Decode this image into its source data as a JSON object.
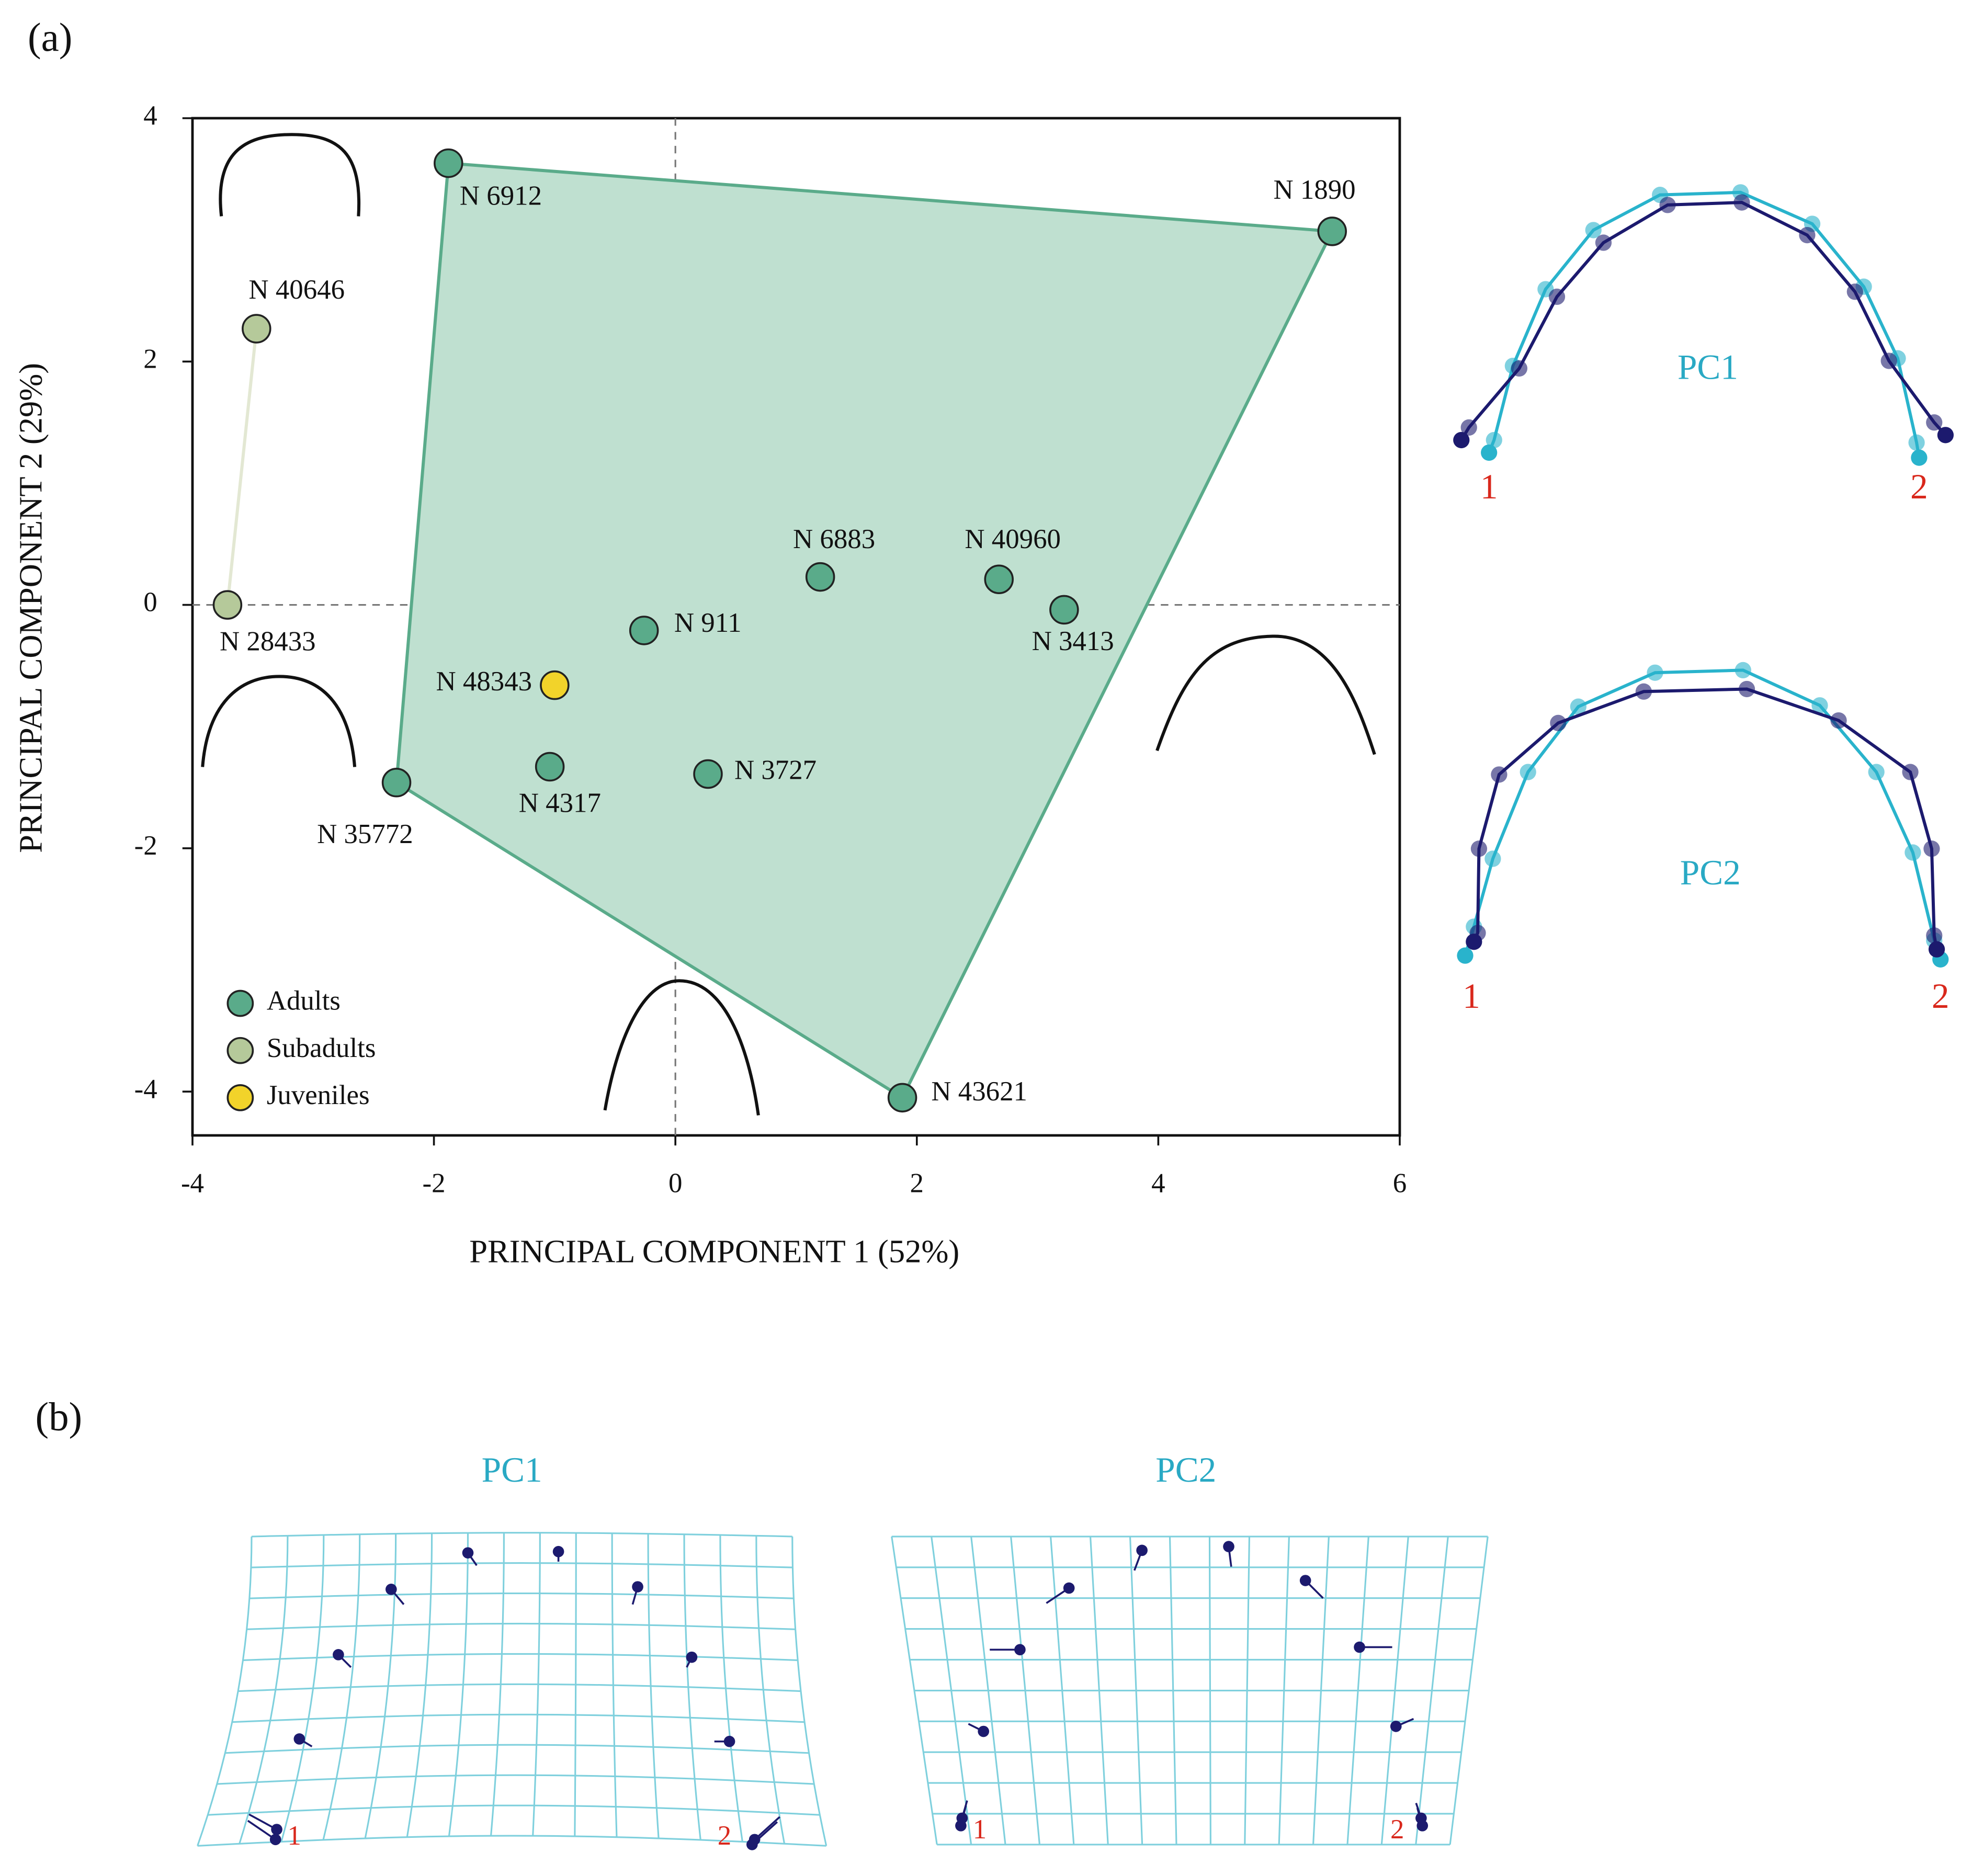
{
  "chart_data": {
    "type": "scatter",
    "x_label": "PRINCIPAL COMPONENT 1 (52%)",
    "y_label": "PRINCIPAL COMPONENT 2 (29%)",
    "xlim": [
      -4,
      6
    ],
    "ylim": [
      -4.36,
      4
    ],
    "xticks": [
      -4,
      -2,
      0,
      2,
      4,
      6
    ],
    "yticks": [
      -4,
      -2,
      0,
      2,
      4
    ],
    "zero_lines": true,
    "legend": "lower left",
    "series": [
      {
        "name": "Adults",
        "color": "#5aab8a",
        "hull": true,
        "hull_fill": "#bfe0d0",
        "labels": [
          "N 6912",
          "N 1890",
          "N 6883",
          "N 40960",
          "N 3413",
          "N 911",
          "N 4317",
          "N 3727",
          "N 35772",
          "N 43621"
        ],
        "x": [
          -1.88,
          5.44,
          1.2,
          2.68,
          3.22,
          -0.26,
          -1.04,
          0.27,
          -2.31,
          1.88
        ],
        "values": [
          3.63,
          3.07,
          0.23,
          0.21,
          -0.04,
          -0.21,
          -1.33,
          -1.39,
          -1.46,
          -4.05
        ]
      },
      {
        "name": "Subadults",
        "color": "#b5c99a",
        "hull": true,
        "hull_fill": "#e3e8d3",
        "labels": [
          "N 40646",
          "N 28433"
        ],
        "x": [
          -3.47,
          -3.71
        ],
        "values": [
          2.27,
          0
        ]
      },
      {
        "name": "Juveniles",
        "color": "#f2d32a",
        "hull": false,
        "labels": [
          "N 48343"
        ],
        "x": [
          -1.0
        ],
        "values": [
          -0.66
        ]
      }
    ]
  },
  "panel_labels": [
    "(a)",
    "(b)"
  ],
  "shapes": [
    {
      "title": "PC1",
      "ends": [
        "1",
        "2"
      ]
    },
    {
      "title": "PC2",
      "ends": [
        "1",
        "2"
      ]
    }
  ],
  "grids": [
    {
      "title": "PC1",
      "ends": [
        "1",
        "2"
      ]
    },
    {
      "title": "PC2",
      "ends": [
        "1",
        "2"
      ]
    }
  ]
}
